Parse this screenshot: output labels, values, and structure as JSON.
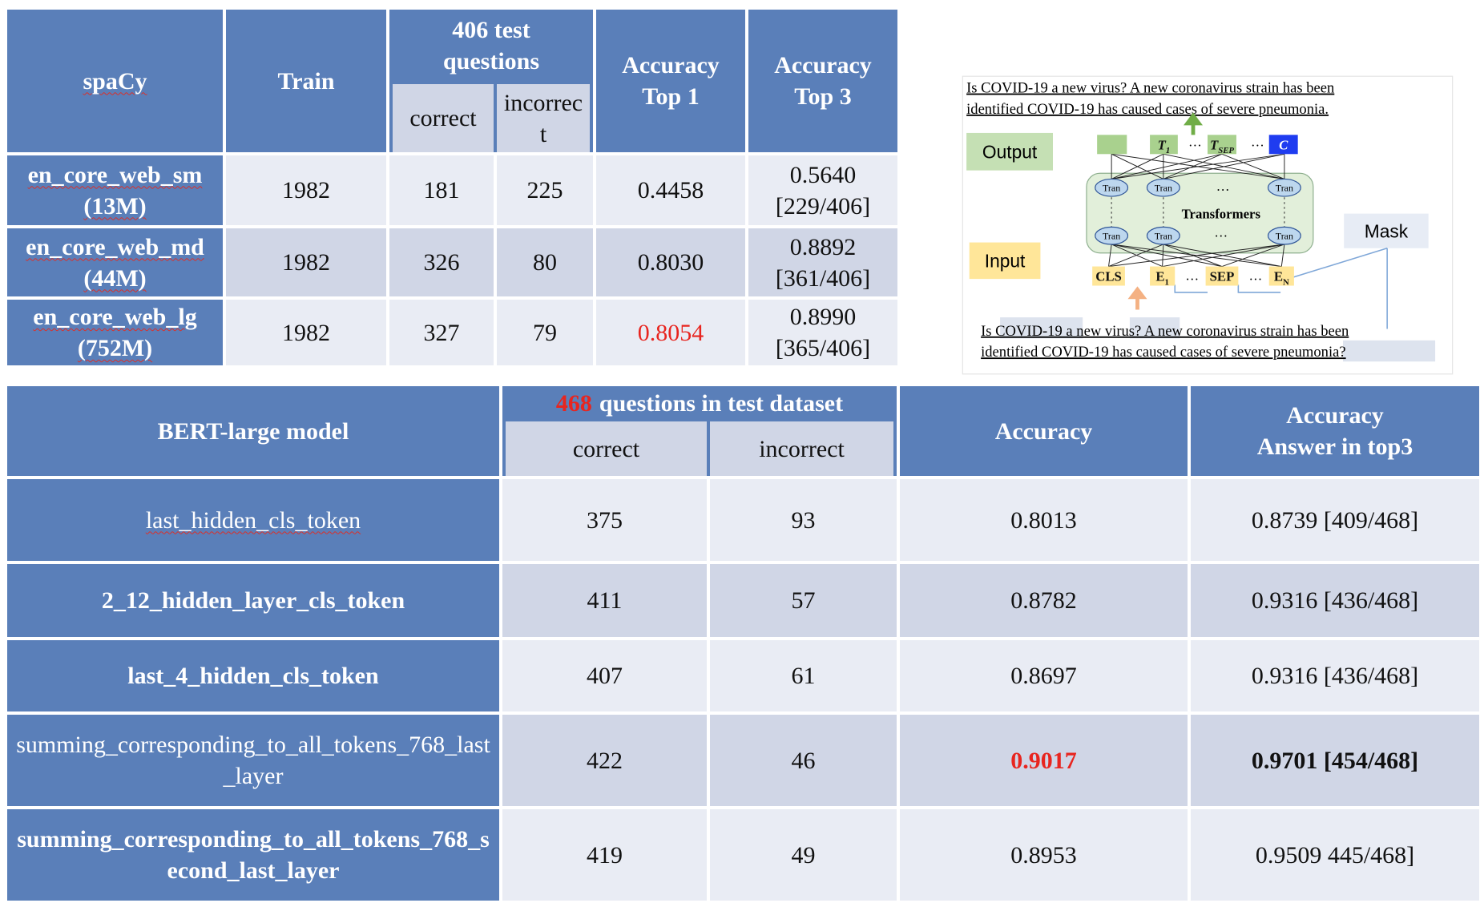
{
  "spacy_table": {
    "header": {
      "model": "spaCy",
      "train": "Train",
      "group": "406 test\nquestions",
      "correct": "correct",
      "incorrect": "incorrect",
      "top1": "Accuracy\nTop 1",
      "top3": "Accuracy\nTop 3"
    },
    "rows": [
      [
        "en_core_web_sm\n(13M)",
        "1982",
        "181",
        "225",
        "0.4458",
        "0.5640\n[229/406]"
      ],
      [
        "en_core_web_md\n(44M)",
        "1982",
        "326",
        "80",
        "0.8030",
        "0.8892\n[361/406]"
      ],
      [
        "en_core_web_lg\n(752M)",
        "1982",
        "327",
        "79",
        {
          "text": "0.8054",
          "color": "red"
        },
        "0.8990\n[365/406]"
      ]
    ]
  },
  "bert_table": {
    "header": {
      "model": "BERT-large model",
      "group": [
        {
          "text": "468",
          "color": "red"
        },
        {
          "text": "questions in test dataset"
        }
      ],
      "correct": "correct",
      "incorrect": "incorrect",
      "accuracy": "Accuracy",
      "top3": "Accuracy\nAnswer in top3"
    },
    "rows": [
      [
        {
          "text": "last_hidden_cls_token",
          "bold": false
        },
        "375",
        "93",
        "0.8013",
        "0.8739 [409/468]"
      ],
      [
        "2_12_hidden_layer_cls_token",
        "411",
        "57",
        "0.8782",
        "0.9316 [436/468]"
      ],
      [
        "last_4_hidden_cls_token",
        "407",
        "61",
        "0.8697",
        "0.9316 [436/468]"
      ],
      [
        {
          "text": "summing_corresponding_to_all_tokens_768_last_layer",
          "bold": false
        },
        "422",
        "46",
        {
          "text": "0.9017",
          "color": "red",
          "bold": true
        },
        {
          "text": "0.9701 [454/468]",
          "bold": true
        }
      ],
      [
        "summing_corresponding_to_all_tokens_768_second_last_layer",
        "419",
        "49",
        "0.8953",
        "0.9509 445/468]"
      ]
    ]
  },
  "diagram": {
    "caption_top": [
      "Is COVID-19 a new virus? A new coronavirus strain has been",
      "identified  COVID-19 has caused cases of severe pneumonia."
    ],
    "caption_bottom": [
      "Is COVID-19 a new virus? A new coronavirus strain has been",
      "identified  COVID-19 has caused cases of severe pneumonia?"
    ],
    "output": "Output",
    "input": "Input",
    "mask": "Mask",
    "block": "Tran",
    "transformers": "Transformers",
    "ellipsis": "…",
    "top_tokens": [
      {
        "base": "T",
        "sub": "1"
      },
      {
        "base": "T",
        "sub": "SEP"
      },
      {
        "base": "C"
      }
    ],
    "bottom_tokens": [
      {
        "base": "CLS"
      },
      {
        "base": "E",
        "sub": "1"
      },
      {
        "base": "SEP"
      },
      {
        "base": "E",
        "sub": "N"
      }
    ]
  }
}
